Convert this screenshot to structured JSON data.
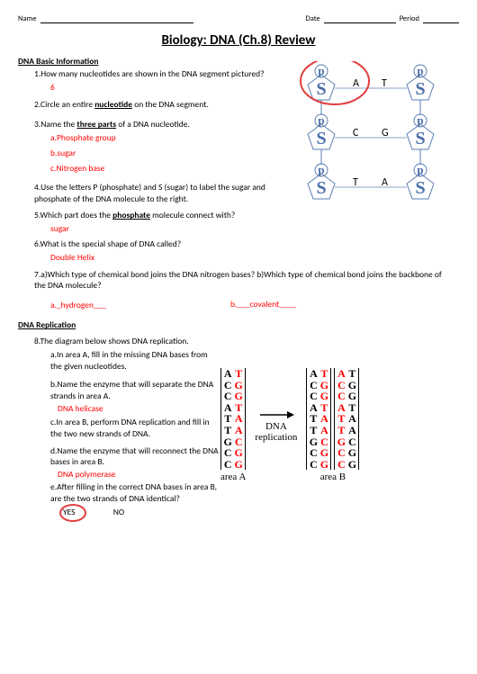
{
  "header": {
    "name": "Name",
    "date": "Date",
    "period": "Period"
  },
  "title": "Biology: DNA (Ch.8) Review",
  "section1": {
    "head": "DNA Basic Information"
  },
  "q1": {
    "text": "1.How many nucleotides are shown in the DNA segment pictured?",
    "ans": "6"
  },
  "q2": {
    "text": "2.Circle an entire ",
    "bold": "nucleotide",
    "text2": " on the DNA segment."
  },
  "q3": {
    "text": "3.Name the ",
    "bold": "three parts",
    "text2": " of a DNA nucleotide.",
    "a": "a.Phosphate group",
    "b": "b.sugar",
    "c": "c.Nitrogen base"
  },
  "q4": {
    "text": "4.Use the letters P (phosphate) and S (sugar) to label the sugar and phosphate of the DNA molecule to the right."
  },
  "q5": {
    "text": "5.Which part does the ",
    "bold": "phosphate",
    "text2": " molecule connect with?",
    "ans": "sugar"
  },
  "q6": {
    "text": "6.What is the special shape of DNA called?",
    "ans": "Double Helix"
  },
  "q7": {
    "text": "7.a)Which type of chemical bond joins the DNA nitrogen bases? b)Which type of chemical bond joins the backbone of the DNA molecule?",
    "a": "a._hydrogen___",
    "b": "b.___covalent____"
  },
  "section2": {
    "head": "DNA Replication"
  },
  "q8": {
    "text": "8.The diagram below shows DNA replication.",
    "a": "a.In area A, fill in the missing DNA bases from the given nucleotides.",
    "b": "b.Name the enzyme that will separate the DNA strands in area A.",
    "b_ans": "DNA helicase",
    "c": "c.In area B, perform DNA replication and fill in the two new strands of DNA.",
    "d": "d.Name the enzyme that will reconnect the DNA bases in area B.",
    "d_ans": "DNA polymerase",
    "e": "e.After filling in the correct DNA bases in area B, are the two strands of DNA identical?",
    "yes": "YES",
    "no": "NO"
  },
  "bases": {
    "A_L": [
      "A",
      "C",
      "C",
      "A",
      "T",
      "T",
      "G",
      "C",
      "C"
    ],
    "A_R": [
      "T",
      "G",
      "G",
      "T",
      "A",
      "A",
      "C",
      "G",
      "G"
    ],
    "mid": "DNA replication",
    "areaA": "area A",
    "areaB": "area B"
  },
  "diagram_bases": {
    "AT": "A",
    "T": "T",
    "CG": "C",
    "G": "G",
    "TA": "T",
    "A2": "A"
  }
}
